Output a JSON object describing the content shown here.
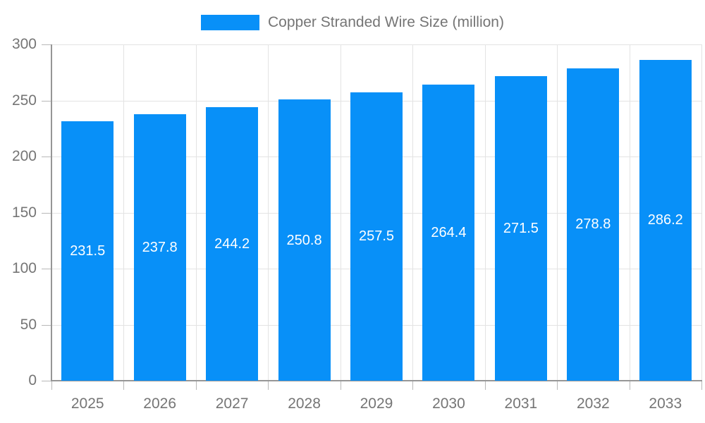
{
  "chart_data": {
    "type": "bar",
    "title": "Copper Stranded Wire Size (million)",
    "legend": {
      "label": "Copper Stranded Wire Size (million)",
      "position": "top-center"
    },
    "categories": [
      "2025",
      "2026",
      "2027",
      "2028",
      "2029",
      "2030",
      "2031",
      "2032",
      "2033"
    ],
    "values": [
      231.5,
      237.8,
      244.2,
      250.8,
      257.5,
      264.4,
      271.5,
      278.8,
      286.2
    ],
    "value_labels": [
      "231.5",
      "237.8",
      "244.2",
      "250.8",
      "257.5",
      "264.4",
      "271.5",
      "278.8",
      "286.2"
    ],
    "xlabel": "",
    "ylabel": "",
    "ylim": [
      0,
      300
    ],
    "yticks": [
      0,
      50,
      100,
      150,
      200,
      250,
      300
    ],
    "grid": true,
    "bar_label_position": "inside-center",
    "colors": {
      "bar": "#0890f8",
      "grid": "#e3e3e3",
      "axis": "#969696",
      "tick": "#b8b8b8",
      "axis_text": "#757575",
      "bar_label_text": "#ffffff",
      "background": "#ffffff"
    }
  }
}
